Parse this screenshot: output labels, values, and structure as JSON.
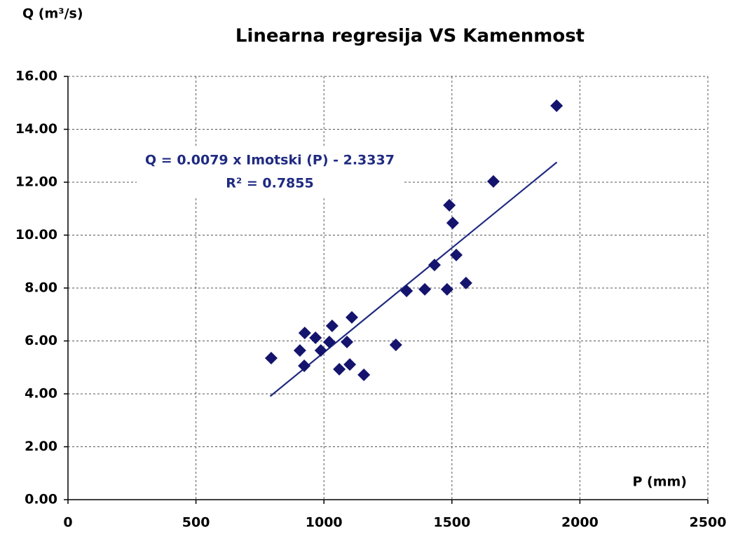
{
  "chart_data": {
    "type": "scatter",
    "title": "Linearna regresija VS Kamenmost",
    "y_label": "Q (m³/s)",
    "x_label": "P (mm)",
    "color": "#14146e",
    "x": [
      794,
      906,
      925,
      967,
      923,
      988,
      1032,
      1021,
      1090,
      1109,
      1060,
      1101,
      1156,
      1281,
      1323,
      1394,
      1432,
      1481,
      1490,
      1503,
      1517,
      1555,
      1662,
      1909
    ],
    "values": [
      5.35,
      5.64,
      6.3,
      6.12,
      5.06,
      5.64,
      6.57,
      5.96,
      5.96,
      6.89,
      4.93,
      5.11,
      4.72,
      5.85,
      7.89,
      7.95,
      8.87,
      7.95,
      11.13,
      10.46,
      9.25,
      8.19,
      12.03,
      14.89
    ],
    "trendline": {
      "slope": 0.0079,
      "intercept": -2.3337,
      "x_range": [
        790,
        1910
      ],
      "color": "#1f2a80",
      "equation": "Q = 0.0079 x Imotski (P) - 2.3337",
      "r2": "R² = 0.7855"
    },
    "xlim": [
      0,
      2500
    ],
    "xticks": [
      0,
      500,
      1000,
      1500,
      2000,
      2500
    ],
    "ylim": [
      0,
      16
    ],
    "yticks": [
      {
        "value": 0,
        "label": "0.00"
      },
      {
        "value": 2,
        "label": "2.00"
      },
      {
        "value": 4,
        "label": "4.00"
      },
      {
        "value": 6,
        "label": "6.00"
      },
      {
        "value": 8,
        "label": "8.00"
      },
      {
        "value": 10,
        "label": "10.00"
      },
      {
        "value": 12,
        "label": "12.00"
      },
      {
        "value": 14,
        "label": "14.00"
      },
      {
        "value": 16,
        "label": "16.00"
      }
    ],
    "grid": true
  }
}
